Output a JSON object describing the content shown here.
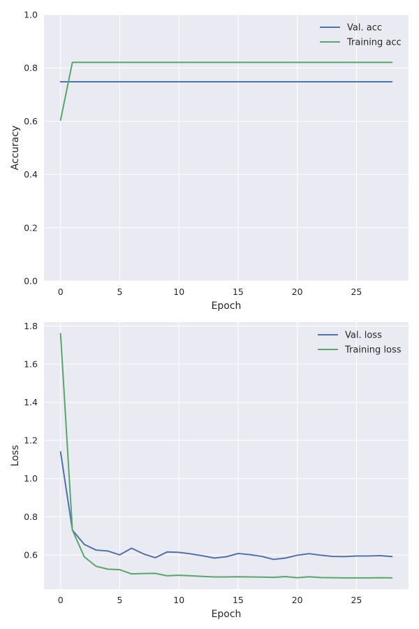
{
  "chart_data": [
    {
      "type": "line",
      "xlabel": "Epoch",
      "ylabel": "Accuracy",
      "xlim": [
        -1.4,
        29.4
      ],
      "ylim": [
        0.0,
        1.0
      ],
      "xticks": [
        0,
        5,
        10,
        15,
        20,
        25
      ],
      "yticks": [
        0.0,
        0.2,
        0.4,
        0.6,
        0.8,
        1.0
      ],
      "ytick_labels": [
        "0.0",
        "0.2",
        "0.4",
        "0.6",
        "0.8",
        "1.0"
      ],
      "grid": true,
      "legend_position": "top-right",
      "x": [
        0,
        1,
        2,
        3,
        4,
        5,
        6,
        7,
        8,
        9,
        10,
        11,
        12,
        13,
        14,
        15,
        16,
        17,
        18,
        19,
        20,
        21,
        22,
        23,
        24,
        25,
        26,
        27,
        28
      ],
      "series": [
        {
          "name": "Val. acc",
          "color": "#4c72b0",
          "values": [
            0.748,
            0.748,
            0.748,
            0.748,
            0.748,
            0.748,
            0.748,
            0.748,
            0.748,
            0.748,
            0.748,
            0.748,
            0.748,
            0.748,
            0.748,
            0.748,
            0.748,
            0.748,
            0.748,
            0.748,
            0.748,
            0.748,
            0.748,
            0.748,
            0.748,
            0.748,
            0.748,
            0.748,
            0.748
          ]
        },
        {
          "name": "Training acc",
          "color": "#55a868",
          "values": [
            0.604,
            0.821,
            0.821,
            0.821,
            0.821,
            0.821,
            0.821,
            0.821,
            0.821,
            0.821,
            0.821,
            0.821,
            0.821,
            0.821,
            0.821,
            0.821,
            0.821,
            0.821,
            0.821,
            0.821,
            0.821,
            0.821,
            0.821,
            0.821,
            0.821,
            0.821,
            0.821,
            0.821,
            0.821
          ]
        }
      ]
    },
    {
      "type": "line",
      "xlabel": "Epoch",
      "ylabel": "Loss",
      "xlim": [
        -1.4,
        29.4
      ],
      "ylim": [
        0.42,
        1.82
      ],
      "xticks": [
        0,
        5,
        10,
        15,
        20,
        25
      ],
      "yticks": [
        0.6,
        0.8,
        1.0,
        1.2,
        1.4,
        1.6,
        1.8
      ],
      "ytick_labels": [
        "0.6",
        "0.8",
        "1.0",
        "1.2",
        "1.4",
        "1.6",
        "1.8"
      ],
      "grid": true,
      "legend_position": "top-right",
      "x": [
        0,
        1,
        2,
        3,
        4,
        5,
        6,
        7,
        8,
        9,
        10,
        11,
        12,
        13,
        14,
        15,
        16,
        17,
        18,
        19,
        20,
        21,
        22,
        23,
        24,
        25,
        26,
        27,
        28
      ],
      "series": [
        {
          "name": "Val. loss",
          "color": "#4c72b0",
          "values": [
            1.14,
            0.73,
            0.655,
            0.625,
            0.62,
            0.6,
            0.635,
            0.605,
            0.585,
            0.615,
            0.613,
            0.605,
            0.595,
            0.583,
            0.59,
            0.607,
            0.601,
            0.592,
            0.576,
            0.583,
            0.598,
            0.606,
            0.598,
            0.592,
            0.591,
            0.594,
            0.594,
            0.596,
            0.591
          ]
        },
        {
          "name": "Training loss",
          "color": "#55a868",
          "values": [
            1.76,
            0.73,
            0.59,
            0.54,
            0.525,
            0.522,
            0.5,
            0.502,
            0.503,
            0.49,
            0.493,
            0.49,
            0.487,
            0.484,
            0.484,
            0.485,
            0.484,
            0.483,
            0.482,
            0.486,
            0.48,
            0.485,
            0.481,
            0.48,
            0.479,
            0.479,
            0.479,
            0.48,
            0.479
          ]
        }
      ]
    }
  ]
}
